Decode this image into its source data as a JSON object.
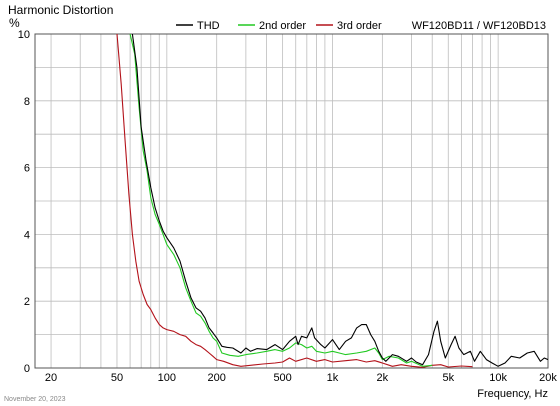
{
  "chart_data": {
    "type": "line",
    "title": "Harmonic Distortion",
    "ylabel": "%",
    "xlabel": "Frequency, Hz",
    "model": "WF120BD11 / WF120BD13",
    "date": "November 20, 2023",
    "x_scale": "log",
    "xlim": [
      16,
      20000
    ],
    "ylim": [
      0,
      10
    ],
    "grid": true,
    "legend_position": "top",
    "x_ticks": [
      {
        "value": 20,
        "label": "20"
      },
      {
        "value": 50,
        "label": "50"
      },
      {
        "value": 100,
        "label": "100"
      },
      {
        "value": 200,
        "label": "200"
      },
      {
        "value": 500,
        "label": "500"
      },
      {
        "value": 1000,
        "label": "1k"
      },
      {
        "value": 2000,
        "label": "2k"
      },
      {
        "value": 5000,
        "label": "5k"
      },
      {
        "value": 10000,
        "label": "10k"
      },
      {
        "value": 20000,
        "label": "20k"
      }
    ],
    "y_ticks": [
      {
        "value": 0,
        "label": "0"
      },
      {
        "value": 2,
        "label": "2"
      },
      {
        "value": 4,
        "label": "4"
      },
      {
        "value": 6,
        "label": "6"
      },
      {
        "value": 8,
        "label": "8"
      },
      {
        "value": 10,
        "label": "10"
      }
    ],
    "series": [
      {
        "name": "THD",
        "color": "#000000",
        "points": [
          [
            62,
            10
          ],
          [
            66,
            9
          ],
          [
            70,
            7.2
          ],
          [
            75,
            6.2
          ],
          [
            80,
            5.4
          ],
          [
            85,
            4.8
          ],
          [
            90,
            4.4
          ],
          [
            95,
            4.1
          ],
          [
            100,
            3.9
          ],
          [
            110,
            3.6
          ],
          [
            120,
            3.2
          ],
          [
            130,
            2.6
          ],
          [
            140,
            2.1
          ],
          [
            150,
            1.8
          ],
          [
            160,
            1.7
          ],
          [
            170,
            1.5
          ],
          [
            180,
            1.2
          ],
          [
            190,
            1.05
          ],
          [
            200,
            0.9
          ],
          [
            215,
            0.65
          ],
          [
            230,
            0.62
          ],
          [
            250,
            0.6
          ],
          [
            280,
            0.45
          ],
          [
            300,
            0.6
          ],
          [
            320,
            0.5
          ],
          [
            350,
            0.58
          ],
          [
            400,
            0.55
          ],
          [
            450,
            0.7
          ],
          [
            500,
            0.55
          ],
          [
            550,
            0.8
          ],
          [
            600,
            0.95
          ],
          [
            620,
            0.7
          ],
          [
            650,
            0.95
          ],
          [
            700,
            0.9
          ],
          [
            750,
            1.2
          ],
          [
            780,
            0.9
          ],
          [
            850,
            0.7
          ],
          [
            900,
            0.6
          ],
          [
            1000,
            0.85
          ],
          [
            1100,
            0.55
          ],
          [
            1200,
            0.8
          ],
          [
            1300,
            0.9
          ],
          [
            1400,
            1.2
          ],
          [
            1500,
            1.3
          ],
          [
            1600,
            1.3
          ],
          [
            1700,
            1.0
          ],
          [
            1800,
            0.8
          ],
          [
            1900,
            0.5
          ],
          [
            2000,
            0.3
          ],
          [
            2100,
            0.2
          ],
          [
            2300,
            0.4
          ],
          [
            2500,
            0.35
          ],
          [
            2800,
            0.2
          ],
          [
            3000,
            0.3
          ],
          [
            3200,
            0.18
          ],
          [
            3500,
            0.1
          ],
          [
            3800,
            0.4
          ],
          [
            4100,
            1.1
          ],
          [
            4300,
            1.4
          ],
          [
            4500,
            0.8
          ],
          [
            4800,
            0.3
          ],
          [
            5200,
            0.7
          ],
          [
            5500,
            0.95
          ],
          [
            5800,
            0.6
          ],
          [
            6200,
            0.4
          ],
          [
            6800,
            0.5
          ],
          [
            7200,
            0.2
          ],
          [
            7800,
            0.5
          ],
          [
            8500,
            0.25
          ],
          [
            9200,
            0.15
          ],
          [
            10000,
            0.05
          ],
          [
            11000,
            0.15
          ],
          [
            12000,
            0.35
          ],
          [
            13500,
            0.3
          ],
          [
            15000,
            0.45
          ],
          [
            16500,
            0.5
          ],
          [
            18000,
            0.2
          ],
          [
            19000,
            0.3
          ],
          [
            20000,
            0.25
          ]
        ]
      },
      {
        "name": "2nd order",
        "color": "#22c922",
        "points": [
          [
            60,
            10
          ],
          [
            64,
            9.4
          ],
          [
            68,
            7.8
          ],
          [
            72,
            6.5
          ],
          [
            76,
            5.9
          ],
          [
            80,
            5.1
          ],
          [
            85,
            4.6
          ],
          [
            90,
            4.3
          ],
          [
            95,
            4.0
          ],
          [
            100,
            3.7
          ],
          [
            110,
            3.4
          ],
          [
            120,
            3.0
          ],
          [
            130,
            2.4
          ],
          [
            140,
            2.0
          ],
          [
            150,
            1.65
          ],
          [
            160,
            1.55
          ],
          [
            170,
            1.35
          ],
          [
            180,
            1.1
          ],
          [
            190,
            0.9
          ],
          [
            200,
            0.8
          ],
          [
            215,
            0.45
          ],
          [
            240,
            0.38
          ],
          [
            270,
            0.35
          ],
          [
            300,
            0.4
          ],
          [
            350,
            0.45
          ],
          [
            400,
            0.5
          ],
          [
            450,
            0.55
          ],
          [
            500,
            0.5
          ],
          [
            550,
            0.6
          ],
          [
            600,
            0.75
          ],
          [
            650,
            0.7
          ],
          [
            700,
            0.6
          ],
          [
            750,
            0.65
          ],
          [
            800,
            0.5
          ],
          [
            900,
            0.45
          ],
          [
            1000,
            0.5
          ],
          [
            1100,
            0.45
          ],
          [
            1200,
            0.4
          ],
          [
            1400,
            0.45
          ],
          [
            1600,
            0.5
          ],
          [
            1800,
            0.6
          ],
          [
            1900,
            0.45
          ],
          [
            2000,
            0.25
          ],
          [
            2200,
            0.35
          ],
          [
            2500,
            0.3
          ],
          [
            2800,
            0.15
          ],
          [
            3000,
            0.2
          ],
          [
            3500,
            0.05
          ],
          [
            4000,
            0.08
          ]
        ]
      },
      {
        "name": "3rd order",
        "color": "#b3121a",
        "points": [
          [
            50,
            10
          ],
          [
            53,
            8.5
          ],
          [
            56,
            6.8
          ],
          [
            59,
            5.2
          ],
          [
            62,
            4.0
          ],
          [
            65,
            3.2
          ],
          [
            68,
            2.6
          ],
          [
            72,
            2.2
          ],
          [
            76,
            1.9
          ],
          [
            80,
            1.75
          ],
          [
            85,
            1.5
          ],
          [
            90,
            1.3
          ],
          [
            95,
            1.2
          ],
          [
            100,
            1.15
          ],
          [
            110,
            1.1
          ],
          [
            120,
            1.0
          ],
          [
            130,
            0.95
          ],
          [
            140,
            0.8
          ],
          [
            150,
            0.7
          ],
          [
            160,
            0.65
          ],
          [
            170,
            0.55
          ],
          [
            180,
            0.45
          ],
          [
            190,
            0.35
          ],
          [
            200,
            0.25
          ],
          [
            220,
            0.2
          ],
          [
            250,
            0.1
          ],
          [
            280,
            0.05
          ],
          [
            320,
            0.08
          ],
          [
            380,
            0.12
          ],
          [
            450,
            0.15
          ],
          [
            500,
            0.18
          ],
          [
            550,
            0.3
          ],
          [
            600,
            0.2
          ],
          [
            700,
            0.3
          ],
          [
            800,
            0.2
          ],
          [
            900,
            0.25
          ],
          [
            1000,
            0.18
          ],
          [
            1200,
            0.22
          ],
          [
            1400,
            0.25
          ],
          [
            1600,
            0.18
          ],
          [
            1800,
            0.22
          ],
          [
            2000,
            0.15
          ],
          [
            2300,
            0.05
          ],
          [
            2600,
            0.1
          ],
          [
            3000,
            0.05
          ],
          [
            3500,
            0.02
          ],
          [
            4000,
            0.08
          ],
          [
            4500,
            0.1
          ],
          [
            5000,
            0.03
          ],
          [
            6000,
            0.06
          ],
          [
            7000,
            0.04
          ]
        ]
      }
    ]
  }
}
